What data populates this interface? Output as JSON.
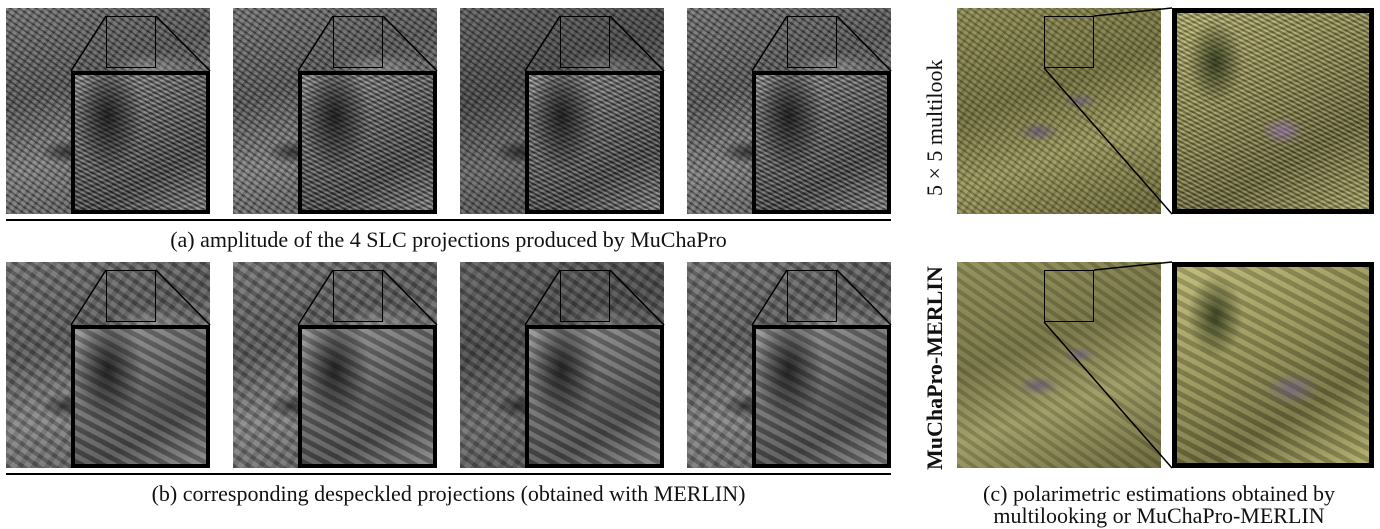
{
  "figure": {
    "caption_a": "(a) amplitude of the 4 SLC projections produced by MuChaPro",
    "caption_b": "(b) corresponding despeckled projections (obtained with MERLIN)",
    "caption_c_line1": "(c) polarimetric estimations obtained by",
    "caption_c_line2": "multilooking or MuChaPro-MERLIN",
    "row_label_top": "5 × 5 multilook",
    "row_label_bottom": "MuChaPro-MERLIN"
  },
  "panels": {
    "row_a": [
      {
        "image": "sar-amplitude-projection-1"
      },
      {
        "image": "sar-amplitude-projection-2"
      },
      {
        "image": "sar-amplitude-projection-3"
      },
      {
        "image": "sar-amplitude-projection-4"
      }
    ],
    "row_b": [
      {
        "image": "despeckled-projection-1"
      },
      {
        "image": "despeckled-projection-2"
      },
      {
        "image": "despeckled-projection-3"
      },
      {
        "image": "despeckled-projection-4"
      }
    ],
    "column_c": [
      {
        "image": "polarimetric-multilook"
      },
      {
        "image": "polarimetric-muchapro-merlin"
      }
    ]
  }
}
